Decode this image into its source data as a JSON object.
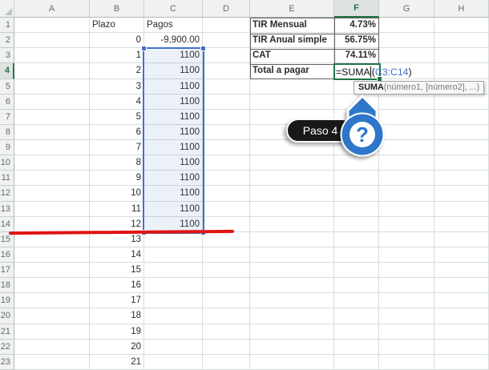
{
  "colors": {
    "accent_green": "#217346",
    "selection_blue": "#4472C4",
    "annotation_red": "#E01313",
    "callout_blue": "#2F76C9"
  },
  "grid": {
    "column_headers": [
      "A",
      "B",
      "C",
      "D",
      "E",
      "F",
      "G",
      "H"
    ],
    "selected_column": "F",
    "selected_row": 4,
    "row_count": 23,
    "table": {
      "b_header": "Plazo",
      "c_header": "Pagos",
      "plazo_values": [
        "0",
        "1",
        "2",
        "3",
        "4",
        "5",
        "6",
        "7",
        "8",
        "9",
        "10",
        "11",
        "12",
        "13",
        "14",
        "15",
        "16",
        "17",
        "18",
        "19",
        "20",
        "21"
      ],
      "pagos_values": [
        "-9,900.00",
        "1100",
        "1100",
        "1100",
        "1100",
        "1100",
        "1100",
        "1100",
        "1100",
        "1100",
        "1100",
        "1100",
        "1100"
      ]
    },
    "summary": {
      "items": [
        {
          "label": "TIR Mensual",
          "value": "4.73%"
        },
        {
          "label": "TIR Anual simple",
          "value": "56.75%"
        },
        {
          "label": "CAT",
          "value": "74.11%"
        }
      ],
      "total_label": "Total a pagar"
    },
    "formula": {
      "pre": "=SUMA",
      "open": "(",
      "ref": "C3:C14",
      "close": ")"
    },
    "tooltip": {
      "func": "SUMA",
      "args": "(número1, [número2], ...)"
    },
    "selection_range": "C3:C14"
  },
  "callout": {
    "step_label": "Paso 4",
    "icon": "?"
  }
}
